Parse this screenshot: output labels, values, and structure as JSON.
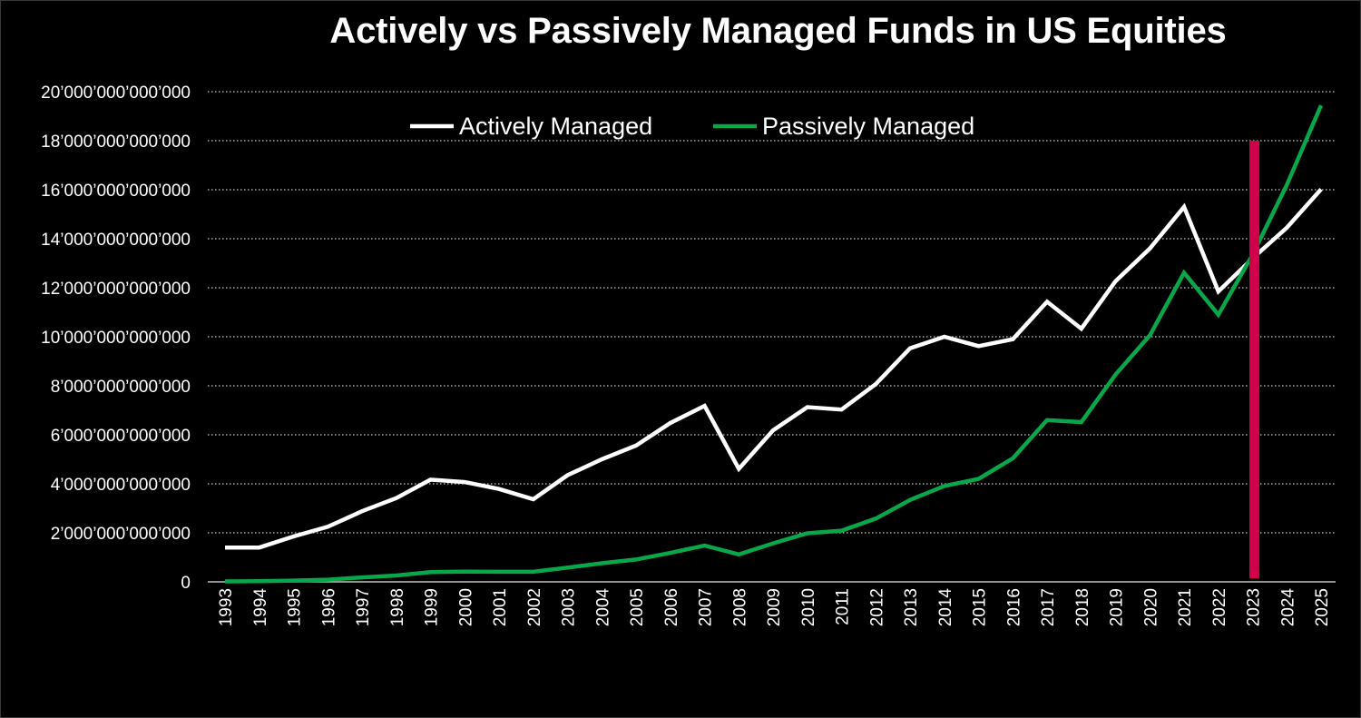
{
  "chart_data": {
    "type": "line",
    "title": "Actively vs Passively Managed Funds in US Equities",
    "xlabel": "",
    "ylabel": "",
    "categories": [
      "1993",
      "1994",
      "1995",
      "1996",
      "1997",
      "1998",
      "1999",
      "2000",
      "2001",
      "2002",
      "2003",
      "2004",
      "2005",
      "2006",
      "2007",
      "2008",
      "2009",
      "2010",
      "2011",
      "2012",
      "2013",
      "2014",
      "2015",
      "2016",
      "2017",
      "2018",
      "2019",
      "2020",
      "2021",
      "2022",
      "2023",
      "2024",
      "2025"
    ],
    "ylim": [
      0,
      20000000000000
    ],
    "y_ticks": [
      0,
      2000000000000,
      4000000000000,
      6000000000000,
      8000000000000,
      10000000000000,
      12000000000000,
      14000000000000,
      16000000000000,
      18000000000000,
      20000000000000
    ],
    "y_tick_labels": [
      "0",
      "2’000’000’000’000",
      "4’000’000’000’000",
      "6’000’000’000’000",
      "8’000’000’000’000",
      "10’000’000’000’000",
      "12’000’000’000’000",
      "14’000’000’000’000",
      "16’000’000’000’000",
      "18’000’000’000’000",
      "20’000’000’000’000"
    ],
    "grid": "horizontal dotted",
    "legend_position": "top-center",
    "series": [
      {
        "name": "Actively Managed",
        "color": "#ffffff",
        "values": [
          1400000000000,
          1400000000000,
          1850000000000,
          2250000000000,
          2880000000000,
          3420000000000,
          4170000000000,
          4070000000000,
          3790000000000,
          3370000000000,
          4350000000000,
          5000000000000,
          5560000000000,
          6480000000000,
          7180000000000,
          4610000000000,
          6180000000000,
          7130000000000,
          7030000000000,
          8070000000000,
          9530000000000,
          10000000000000,
          9620000000000,
          9900000000000,
          11430000000000,
          10330000000000,
          12270000000000,
          13600000000000,
          15300000000000,
          11850000000000,
          13200000000000,
          14450000000000,
          16020000000000
        ]
      },
      {
        "name": "Passively Managed",
        "color": "#0aa64a",
        "values": [
          20000000000,
          30000000000,
          50000000000,
          90000000000,
          180000000000,
          260000000000,
          400000000000,
          420000000000,
          410000000000,
          410000000000,
          580000000000,
          760000000000,
          910000000000,
          1180000000000,
          1480000000000,
          1120000000000,
          1570000000000,
          1980000000000,
          2090000000000,
          2580000000000,
          3340000000000,
          3910000000000,
          4200000000000,
          5040000000000,
          6600000000000,
          6520000000000,
          8460000000000,
          10060000000000,
          12610000000000,
          10900000000000,
          13350000000000,
          16200000000000,
          19440000000000
        ]
      }
    ],
    "annotations": [
      {
        "type": "vertical-bar",
        "x": "2023",
        "from": 0,
        "to": 18000000000000,
        "color": "#d1004b"
      }
    ]
  }
}
